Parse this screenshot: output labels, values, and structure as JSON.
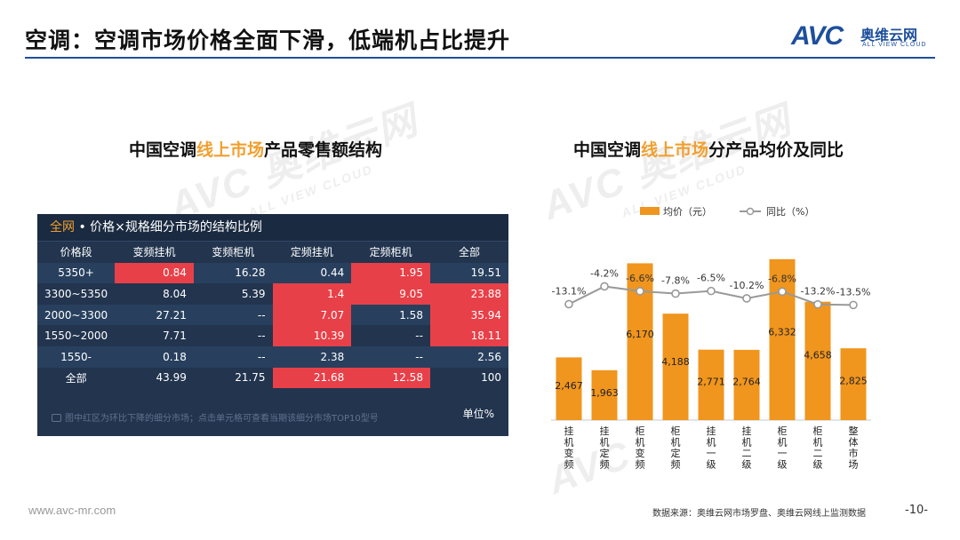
{
  "header": {
    "title": "空调：空调市场价格全面下滑，低端机占比提升",
    "logo_text": "AVC",
    "logo_cn": "奥维云网",
    "logo_en": "ALL VIEW CLOUD"
  },
  "left": {
    "title_pre": "中国空调",
    "title_hl": "线上市场",
    "title_post": "产品零售额结构",
    "panel_all": "全网",
    "panel_title": " • 价格×规格细分市场的结构比例",
    "columns": [
      "价格段",
      "变频挂机",
      "变频柜机",
      "定频挂机",
      "定频柜机",
      "全部"
    ],
    "rows": [
      [
        "5350+",
        "0.84",
        "16.28",
        "0.44",
        "1.95",
        "19.51"
      ],
      [
        "3300~5350",
        "8.04",
        "5.39",
        "1.4",
        "9.05",
        "23.88"
      ],
      [
        "2000~3300",
        "27.21",
        "--",
        "7.07",
        "1.58",
        "35.94"
      ],
      [
        "1550~2000",
        "7.71",
        "--",
        "10.39",
        "--",
        "18.11"
      ],
      [
        "1550-",
        "0.18",
        "--",
        "2.38",
        "--",
        "2.56"
      ],
      [
        "全部",
        "43.99",
        "21.75",
        "21.68",
        "12.58",
        "100"
      ]
    ],
    "highlight": [
      [
        0,
        1
      ],
      [
        0,
        4
      ],
      [
        1,
        3
      ],
      [
        1,
        4
      ],
      [
        1,
        5
      ],
      [
        2,
        3
      ],
      [
        2,
        5
      ],
      [
        3,
        3
      ],
      [
        3,
        5
      ],
      [
        5,
        3
      ],
      [
        5,
        4
      ]
    ],
    "highlight_color": "#e84048",
    "note": "图中红区为环比下降的细分市场；点击单元格可查看当期该细分市场TOP10型号",
    "unit": "单位%"
  },
  "right": {
    "title_pre": "中国空调",
    "title_hl": "线上市场",
    "title_post": "分产品均价及同比"
  },
  "chart_data": {
    "type": "bar",
    "categories": [
      "挂机变频",
      "挂机定频",
      "柜机变频",
      "柜机定频",
      "挂机一级",
      "挂机二级",
      "柜机一级",
      "柜机二级",
      "整体市场"
    ],
    "series": [
      {
        "name": "均价（元）",
        "type": "bar",
        "axis": "left",
        "color": "#f0951e",
        "values": [
          2467,
          1963,
          6170,
          4188,
          2771,
          2764,
          6332,
          4658,
          2825
        ],
        "labels": [
          "2,467",
          "1,963",
          "6,170",
          "4,188",
          "2,771",
          "2,764",
          "6,332",
          "4,658",
          "2,825"
        ]
      },
      {
        "name": "同比（%）",
        "type": "line",
        "axis": "right",
        "color": "#999999",
        "values": [
          -13.1,
          -4.2,
          -6.6,
          -7.8,
          -6.5,
          -10.2,
          -6.8,
          -13.2,
          -13.5
        ],
        "labels": [
          "-13.1%",
          "-4.2%",
          "-6.6%",
          "-7.8%",
          "-6.5%",
          "-10.2%",
          "-6.8%",
          "-13.2%",
          "-13.5%"
        ]
      }
    ],
    "ylim_left": [
      0,
      6500
    ],
    "ylim_right": [
      -40,
      0
    ],
    "legend": "top"
  },
  "footer": {
    "url": "www.avc-mr.com",
    "source": "数据来源：奥维云网市场罗盘、奥维云网线上监测数据",
    "page": "-10-"
  },
  "watermark": {
    "cn": "奥维云网",
    "en": "ALL VIEW CLOUD"
  }
}
